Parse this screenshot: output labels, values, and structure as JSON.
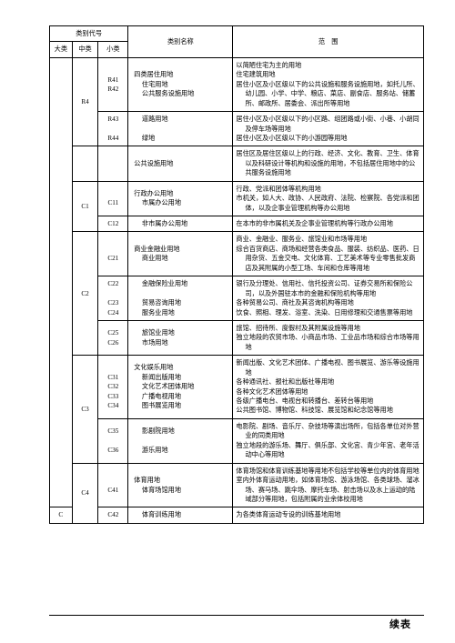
{
  "header": {
    "code_group": "类别代号",
    "main": "大类",
    "mid": "中类",
    "small": "小类",
    "name": "类别名称",
    "scope": "范　围"
  },
  "r4": {
    "mid_code": "R4",
    "codes": {
      "r41": "R41",
      "r42": "R42",
      "r43": "R43",
      "r44": "R44"
    },
    "names": {
      "title": "四类居住用地",
      "r41": "住宅用地",
      "r42": "公共服务设施用地",
      "r43": "道路用地",
      "r44": "绿地"
    },
    "scope": {
      "title": "以简陋住宅为主的用地",
      "r41": "住宅建筑用地",
      "r42": "居住小区及小区级以下的公共设施和服务设施用地，如托儿所、幼儿园、小学、中学、粮店、菜店、副食店、服务站、储蓄所、邮政所、居委会、派出所等用地",
      "r43": "居住小区及小区级以下的小区路、组团路或小街、小巷、小胡同及停车场等用地",
      "r44": "居住小区及小区级以下的小游园等用地"
    }
  },
  "cpub": {
    "name": "公共设施用地",
    "scope": "居住区及居住区级以上的行政、经济、文化、教育、卫生、体育以及科研设计等机构和设施的用地，不包括居住用地中的公共服务设施用地"
  },
  "big_c": "C",
  "c1": {
    "mid_code": "C1",
    "codes": {
      "c11": "C11",
      "c12": "C12"
    },
    "names": {
      "title": "行政办公用地",
      "c11": "市属办公用地",
      "c12": "非市属办公用地"
    },
    "scope": {
      "title": "行政、党派和团体等机构用地",
      "c11": "市机关，如人大、政协、人民政府、法院、检察院、各党派和团体，以及企事业管理机构等办公用地",
      "c12": "在本市的非市属机关及企事业管理机构等行政办公用地"
    }
  },
  "c2": {
    "mid_code": "C2",
    "codes": {
      "c21": "C21",
      "c22": "C22",
      "c23": "C23",
      "c24": "C24",
      "c25": "C25",
      "c26": "C26"
    },
    "names": {
      "title": "商业金融业用地",
      "c21": "商业用地",
      "c22": "金融保险业用地",
      "c23": "贸易咨询用地",
      "c24": "服务业用地",
      "c25": "旅馆业用地",
      "c26": "市场用地"
    },
    "scope": {
      "title": "商业、金融业、服务业、旅馆业和市场等用地",
      "c21": "综合百货商店、商场和经营各类食品、服装、纺织品、医药、日用杂货、五金交电、文化体育、工艺美术等专业零售批发商店及其附属的小型工场、车间和仓库等用地",
      "c22": "银行及分理处、信用社、信托投资公司、证券交易所和保险公司，以及外国驻本市的金融和保险机构等用地",
      "c23": "各种贸易公司、商社及其咨询机构等用地",
      "c24": "饮食、照相、理发、浴室、洗染、日用修理和交通售票等用地",
      "c25": "旅馆、招待所、度假村及其附属设施等用地",
      "c26": "独立地段的农贸市场、小商品市场、工业品市场和综合市场等用地"
    }
  },
  "c3": {
    "mid_code": "C3",
    "codes": {
      "c31": "C31",
      "c32": "C32",
      "c33": "C33",
      "c34": "C34",
      "c35": "C35",
      "c36": "C36"
    },
    "names": {
      "title": "文化娱乐用地",
      "c31": "新闻出版用地",
      "c32": "文化艺术团体用地",
      "c33": "广播电视用地",
      "c34": "图书展览用地",
      "c35": "影剧院用地",
      "c36": "游乐用地"
    },
    "scope": {
      "title": "新闻出版、文化艺术团体、广播电视、图书展览、游乐等设施用地",
      "c31": "各种通讯社、报社和出版社等用地",
      "c32": "各种文化艺术团体等用地",
      "c33": "各级广播电台、电视台和转播台、差转台等用地",
      "c34": "公共图书馆、博物馆、科技馆、展览馆和纪念馆等用地",
      "c35": "电影院、剧场、音乐厅、杂技场等演出场所，包括各单位对外营业的同类用地",
      "c36": "独立地段的游乐场、舞厅、俱乐部、文化宫、青少年宫、老年活动中心等用地"
    }
  },
  "c4": {
    "mid_code": "C4",
    "codes": {
      "c41": "C41",
      "c42": "C42"
    },
    "names": {
      "title": "体育用地",
      "c41": "体育场馆用地",
      "c42": "体育训练用地"
    },
    "scope": {
      "title": "体育场馆和体育训练基地等用地不包括学校等单位内的体育用地",
      "c41": "室内外体育运动用地，如体育场馆、游泳场馆、各类球场、溜冰场、赛马场、跳伞场、摩托车场、射击场以及水上运动的陆域部分等用地，包括附属的业余体校用地",
      "c42": "为各类体育运动专设的训练基地用地"
    }
  },
  "footer": "续表"
}
